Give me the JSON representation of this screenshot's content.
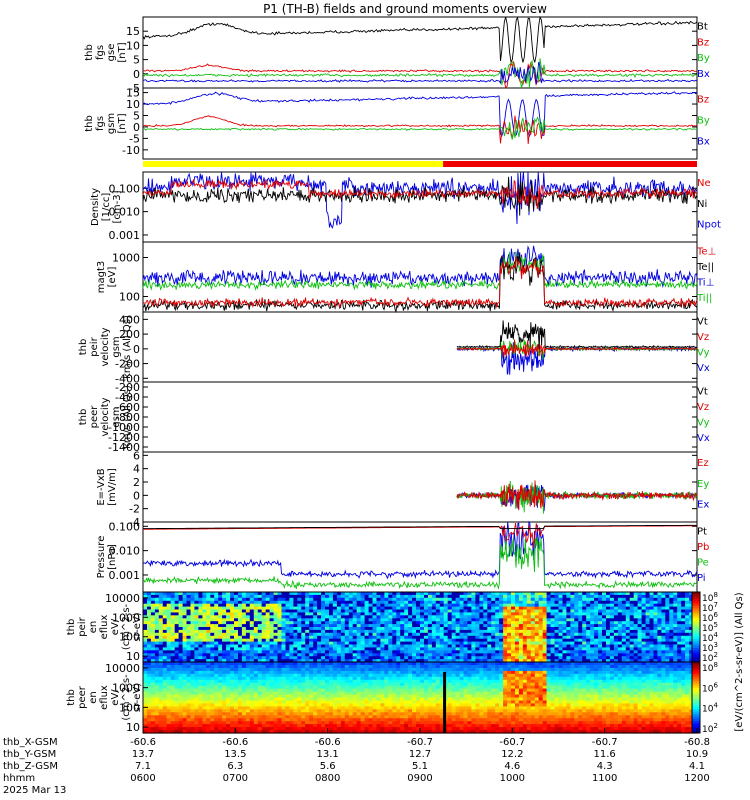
{
  "title": "P1 (TH-B) fields and ground moments overview",
  "colors": {
    "black": "#000000",
    "red": "#e00000",
    "green": "#10c010",
    "blue": "#0000e0",
    "yellow": "#ffff00",
    "bar_red": "#ee0000"
  },
  "chart_data": {
    "type": "line",
    "time_range_hhmm": [
      "0600",
      "1200"
    ],
    "panels": [
      {
        "id": "fgs-gse",
        "ylabel": [
          "thb",
          "fgs",
          "gse",
          "[nT]"
        ],
        "yticks": [
          "15",
          "10",
          "5",
          "0",
          "-5"
        ],
        "ylim": [
          -5,
          20
        ],
        "legend": [
          "Bt",
          "Bz",
          "By",
          "Bx"
        ],
        "legend_colors": [
          "#000000",
          "#e00000",
          "#10c010",
          "#0000e0"
        ]
      },
      {
        "id": "fgs-gsm",
        "ylabel": [
          "thb",
          "fgs",
          "gsm",
          "[nT]"
        ],
        "yticks": [
          "15",
          "10",
          "5",
          "0",
          "-5",
          "-10"
        ],
        "ylim": [
          -14,
          17
        ],
        "legend": [
          "Bz",
          "By",
          "Bx"
        ],
        "legend_colors": [
          "#e00000",
          "#10c010",
          "#0000e0"
        ]
      },
      {
        "id": "density",
        "ylabel": [
          "Density",
          "[1/cc]",
          "[cm-3]"
        ],
        "yticks": [
          "0.100",
          "0.010",
          "0.001"
        ],
        "ylim": [
          0.0005,
          0.5
        ],
        "log": true,
        "legend": [
          "Ne",
          "Ni",
          "Npot"
        ],
        "legend_colors": [
          "#e00000",
          "#000000",
          "#0000e0"
        ]
      },
      {
        "id": "temp",
        "ylabel": [
          "magt3",
          "[eV]"
        ],
        "yticks": [
          "1000",
          "100"
        ],
        "ylim": [
          40,
          2500
        ],
        "log": true,
        "legend": [
          "Te⊥",
          "Te||",
          "Ti⊥",
          "Ti||"
        ],
        "legend_colors": [
          "#e00000",
          "#000000",
          "#0000e0",
          "#10c010"
        ]
      },
      {
        "id": "peir-vel",
        "ylabel": [
          "thb",
          "peir",
          "velocity",
          "gsm",
          "km/s (All Qs)"
        ],
        "yticks": [
          "400",
          "200",
          "0",
          "-200",
          "-400"
        ],
        "ylim": [
          -450,
          500
        ],
        "legend": [
          "Vt",
          "Vz",
          "Vy",
          "Vx"
        ],
        "legend_colors": [
          "#000000",
          "#e00000",
          "#10c010",
          "#0000e0"
        ]
      },
      {
        "id": "peer-vel",
        "ylabel": [
          "thb",
          "peer",
          "velocity",
          "gsm",
          "km/s (All Qs)"
        ],
        "yticks": [
          "-200",
          "-400",
          "-600",
          "-800",
          "-1000",
          "-1200",
          "-1400"
        ],
        "ylim": [
          -1500,
          -100
        ],
        "legend": [
          "Vt",
          "Vz",
          "Vy",
          "Vx"
        ],
        "legend_colors": [
          "#000000",
          "#e00000",
          "#10c010",
          "#0000e0"
        ]
      },
      {
        "id": "efield",
        "ylabel": [
          "E=-VxB",
          "[mV/m]"
        ],
        "yticks": [
          "6",
          "4",
          "2",
          "0",
          "-2",
          "-4"
        ],
        "ylim": [
          -4,
          6.5
        ],
        "legend": [
          "Ez",
          "Ey",
          "Ex"
        ],
        "legend_colors": [
          "#e00000",
          "#10c010",
          "#0000e0"
        ]
      },
      {
        "id": "pressure",
        "ylabel": [
          "Pressure",
          "[nPa]"
        ],
        "yticks": [
          "0.100",
          "0.010",
          "0.001"
        ],
        "ylim": [
          0.0002,
          0.15
        ],
        "log": true,
        "legend": [
          "Pt",
          "Pb",
          "Pe",
          "Pi"
        ],
        "legend_colors": [
          "#000000",
          "#e00000",
          "#10c010",
          "#0000e0"
        ]
      },
      {
        "id": "peir-eflux",
        "ylabel": [
          "thb",
          "peir",
          "en",
          "eflux",
          "eV/",
          "(cm^2-s-",
          "sr-eV)"
        ],
        "yticks": [
          "10000",
          "1000",
          "100",
          "10"
        ],
        "colorbar_ticks": [
          "10^8",
          "10^7",
          "10^6",
          "10^5",
          "10^4",
          "10^3",
          "10^2"
        ]
      },
      {
        "id": "peer-eflux",
        "ylabel": [
          "thb",
          "peer",
          "en",
          "eflux",
          "eV/",
          "(cm^2-s-",
          "sr-eV)"
        ],
        "yticks": [
          "10000",
          "1000",
          "100",
          "10"
        ],
        "colorbar_ticks": [
          "10^8",
          "10^6",
          "10^4",
          "10^2"
        ]
      }
    ],
    "colorbar_label": "[eV/(cm^2-s-sr-eV)] (All Qs)",
    "mode_bar": {
      "yellow_until": "0915",
      "red_from": "0915"
    },
    "xaxis": {
      "row_labels": [
        "thb_X-GSM",
        "thb_Y-GSM",
        "thb_Z-GSM",
        "hhmm",
        "2025 Mar 13"
      ],
      "columns": [
        [
          "-60.6",
          "13.7",
          "7.1",
          "0600"
        ],
        [
          "-60.6",
          "13.5",
          "6.3",
          "0700"
        ],
        [
          "-60.6",
          "13.1",
          "5.6",
          "0800"
        ],
        [
          "-60.7",
          "12.7",
          "5.1",
          "0900"
        ],
        [
          "-60.7",
          "12.2",
          "4.6",
          "1000"
        ],
        [
          "-60.7",
          "11.6",
          "4.3",
          "1100"
        ],
        [
          "-60.8",
          "10.9",
          "4.1",
          "1200"
        ]
      ]
    }
  }
}
